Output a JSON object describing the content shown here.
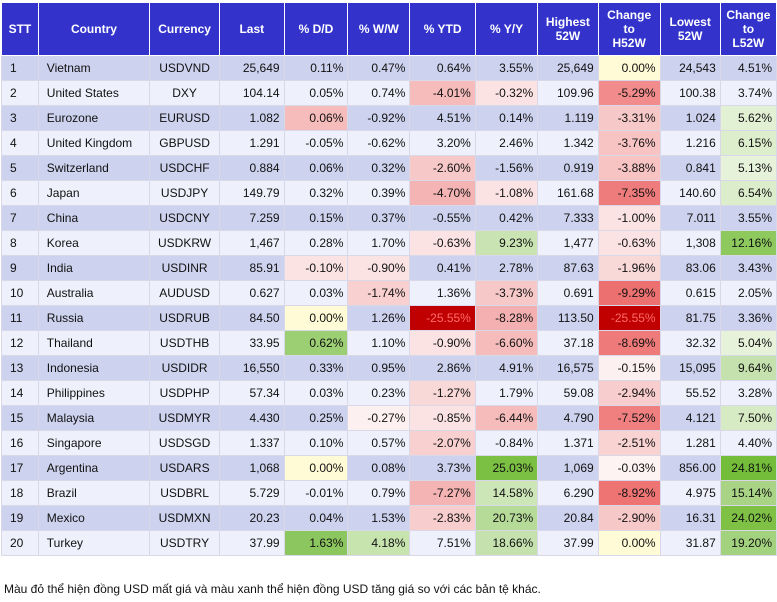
{
  "chart_data": {
    "type": "table",
    "columns": [
      "STT",
      "Country",
      "Currency",
      "Last",
      "% D/D",
      "% W/W",
      "% YTD",
      "% Y/Y",
      "Highest\n52W",
      "Change\nto\nH52W",
      "Lowest\n52W",
      "Change\nto\nL52W"
    ],
    "rows": [
      [
        "1",
        "Vietnam",
        "USDVND",
        "25,649",
        "0.11%",
        "0.47%",
        "0.64%",
        "3.55%",
        "25,649",
        "0.00%",
        "24,543",
        "4.51%"
      ],
      [
        "2",
        "United States",
        "DXY",
        "104.14",
        "0.05%",
        "0.74%",
        "-4.01%",
        "-0.32%",
        "109.96",
        "-5.29%",
        "100.38",
        "3.74%"
      ],
      [
        "3",
        "Eurozone",
        "EURUSD",
        "1.082",
        "0.06%",
        "-0.92%",
        "4.51%",
        "0.14%",
        "1.119",
        "-3.31%",
        "1.024",
        "5.62%"
      ],
      [
        "4",
        "United Kingdom",
        "GBPUSD",
        "1.291",
        "-0.05%",
        "-0.62%",
        "3.20%",
        "2.46%",
        "1.342",
        "-3.76%",
        "1.216",
        "6.15%"
      ],
      [
        "5",
        "Switzerland",
        "USDCHF",
        "0.884",
        "0.06%",
        "0.32%",
        "-2.60%",
        "-1.56%",
        "0.919",
        "-3.88%",
        "0.841",
        "5.13%"
      ],
      [
        "6",
        "Japan",
        "USDJPY",
        "149.79",
        "0.32%",
        "0.39%",
        "-4.70%",
        "-1.08%",
        "161.68",
        "-7.35%",
        "140.60",
        "6.54%"
      ],
      [
        "7",
        "China",
        "USDCNY",
        "7.259",
        "0.15%",
        "0.37%",
        "-0.55%",
        "0.42%",
        "7.333",
        "-1.00%",
        "7.011",
        "3.55%"
      ],
      [
        "8",
        "Korea",
        "USDKRW",
        "1,467",
        "0.28%",
        "1.70%",
        "-0.63%",
        "9.23%",
        "1,477",
        "-0.63%",
        "1,308",
        "12.16%"
      ],
      [
        "9",
        "India",
        "USDINR",
        "85.91",
        "-0.10%",
        "-0.90%",
        "0.41%",
        "2.78%",
        "87.63",
        "-1.96%",
        "83.06",
        "3.43%"
      ],
      [
        "10",
        "Australia",
        "AUDUSD",
        "0.627",
        "0.03%",
        "-1.74%",
        "1.36%",
        "-3.73%",
        "0.691",
        "-9.29%",
        "0.615",
        "2.05%"
      ],
      [
        "11",
        "Russia",
        "USDRUB",
        "84.50",
        "0.00%",
        "1.26%",
        "-25.55%",
        "-8.28%",
        "113.50",
        "-25.55%",
        "81.75",
        "3.36%"
      ],
      [
        "12",
        "Thailand",
        "USDTHB",
        "33.95",
        "0.62%",
        "1.10%",
        "-0.90%",
        "-6.60%",
        "37.18",
        "-8.69%",
        "32.32",
        "5.04%"
      ],
      [
        "13",
        "Indonesia",
        "USDIDR",
        "16,550",
        "0.33%",
        "0.95%",
        "2.86%",
        "4.91%",
        "16,575",
        "-0.15%",
        "15,095",
        "9.64%"
      ],
      [
        "14",
        "Philippines",
        "USDPHP",
        "57.34",
        "0.03%",
        "0.23%",
        "-1.27%",
        "1.79%",
        "59.08",
        "-2.94%",
        "55.52",
        "3.28%"
      ],
      [
        "15",
        "Malaysia",
        "USDMYR",
        "4.430",
        "0.25%",
        "-0.27%",
        "-0.85%",
        "-6.44%",
        "4.790",
        "-7.52%",
        "4.121",
        "7.50%"
      ],
      [
        "16",
        "Singapore",
        "USDSGD",
        "1.337",
        "0.10%",
        "0.57%",
        "-2.07%",
        "-0.84%",
        "1.371",
        "-2.51%",
        "1.281",
        "4.40%"
      ],
      [
        "17",
        "Argentina",
        "USDARS",
        "1,068",
        "0.00%",
        "0.08%",
        "3.73%",
        "25.03%",
        "1,069",
        "-0.03%",
        "856.00",
        "24.81%"
      ],
      [
        "18",
        "Brazil",
        "USDBRL",
        "5.729",
        "-0.01%",
        "0.79%",
        "-7.27%",
        "14.58%",
        "6.290",
        "-8.92%",
        "4.975",
        "15.14%"
      ],
      [
        "19",
        "Mexico",
        "USDMXN",
        "20.23",
        "0.04%",
        "1.53%",
        "-2.83%",
        "20.73%",
        "20.84",
        "-2.90%",
        "16.31",
        "24.02%"
      ],
      [
        "20",
        "Turkey",
        "USDTRY",
        "37.99",
        "1.63%",
        "4.18%",
        "7.51%",
        "18.66%",
        "37.99",
        "0.00%",
        "31.87",
        "19.20%"
      ]
    ],
    "cell_colors": [
      [
        "",
        "",
        "",
        "",
        "",
        "",
        "",
        "",
        "",
        "#fffbd6",
        "",
        ""
      ],
      [
        "",
        "",
        "",
        "",
        "",
        "",
        "#f6bcbc",
        "#fbe3e3",
        "",
        "#f28c8c",
        "",
        ""
      ],
      [
        "",
        "",
        "",
        "",
        "#f6bcbc",
        "",
        "",
        "",
        "",
        "#f7c8c8",
        "",
        "#e2f0d4"
      ],
      [
        "",
        "",
        "",
        "",
        "",
        "",
        "",
        "",
        "",
        "#f7c3c3",
        "",
        "#ddeecd"
      ],
      [
        "",
        "",
        "",
        "",
        "",
        "",
        "#f7c8c8",
        "",
        "",
        "#f7c3c3",
        "",
        "#e6f2da"
      ],
      [
        "",
        "",
        "",
        "",
        "",
        "",
        "#f4b4b4",
        "#fbe3e3",
        "",
        "#ef7c7c",
        "",
        "#dcedcb"
      ],
      [
        "",
        "",
        "",
        "",
        "",
        "",
        "",
        "",
        "",
        "#fbe3e3",
        "",
        ""
      ],
      [
        "",
        "",
        "",
        "",
        "",
        "",
        "#fbe3e3",
        "#c9e4b2",
        "",
        "#fbe3e3",
        "",
        "#8ec95e"
      ],
      [
        "",
        "",
        "",
        "",
        "#fbe3e3",
        "#fbe3e3",
        "",
        "",
        "",
        "#f9d8d8",
        "",
        ""
      ],
      [
        "",
        "",
        "",
        "",
        "",
        "#f9d0d0",
        "",
        "#f7c8c8",
        "",
        "#ed7070",
        "",
        ""
      ],
      [
        "",
        "",
        "",
        "",
        "#fffbd6",
        "",
        "#c00000",
        "#f4b0b0",
        "",
        "#c00000",
        "",
        ""
      ],
      [
        "",
        "",
        "",
        "",
        "#9ccf73",
        "",
        "#fbe3e3",
        "#f6bcbc",
        "",
        "#ef7a7a",
        "",
        "#e6f2da"
      ],
      [
        "",
        "",
        "",
        "",
        "",
        "",
        "",
        "",
        "",
        "#fdf0f0",
        "",
        "#c5e2ae"
      ],
      [
        "",
        "",
        "",
        "",
        "",
        "",
        "#f9d8d8",
        "",
        "",
        "#f8cdcd",
        "",
        ""
      ],
      [
        "",
        "",
        "",
        "",
        "",
        "#fdf0f0",
        "#fbe3e3",
        "#f6bcbc",
        "",
        "#f07f7f",
        "",
        "#d6eac3"
      ],
      [
        "",
        "",
        "",
        "",
        "",
        "",
        "#f9d0d0",
        "",
        "",
        "#f9d2d2",
        "",
        ""
      ],
      [
        "",
        "",
        "",
        "",
        "#fffbd6",
        "",
        "",
        "#7cc043",
        "",
        "#fdf3f3",
        "",
        "#74bd3a"
      ],
      [
        "",
        "",
        "",
        "",
        "",
        "",
        "#f4b4b4",
        "#cde6b8",
        "",
        "#ee7474",
        "",
        "#a9d486"
      ],
      [
        "",
        "",
        "",
        "",
        "",
        "",
        "#f8cdcd",
        "#b6db98",
        "",
        "#f7c8c8",
        "",
        "#7ec145"
      ],
      [
        "",
        "",
        "",
        "",
        "#8cc65e",
        "#c7e3ae",
        "",
        "#c5e2ae",
        "",
        "#fffbd6",
        "",
        "#a3d27f"
      ]
    ],
    "footnote": "Màu đỏ thể hiện đồng USD mất giá và màu xanh thể hiện đồng USD tăng giá so với các bản tệ khác."
  },
  "colors": {
    "header_bg": "#3333cc",
    "header_text": "#ffffff",
    "row_odd": "#cdd3ee",
    "row_even": "#eef0fb",
    "strong_red_text": "#ff6b6b"
  }
}
